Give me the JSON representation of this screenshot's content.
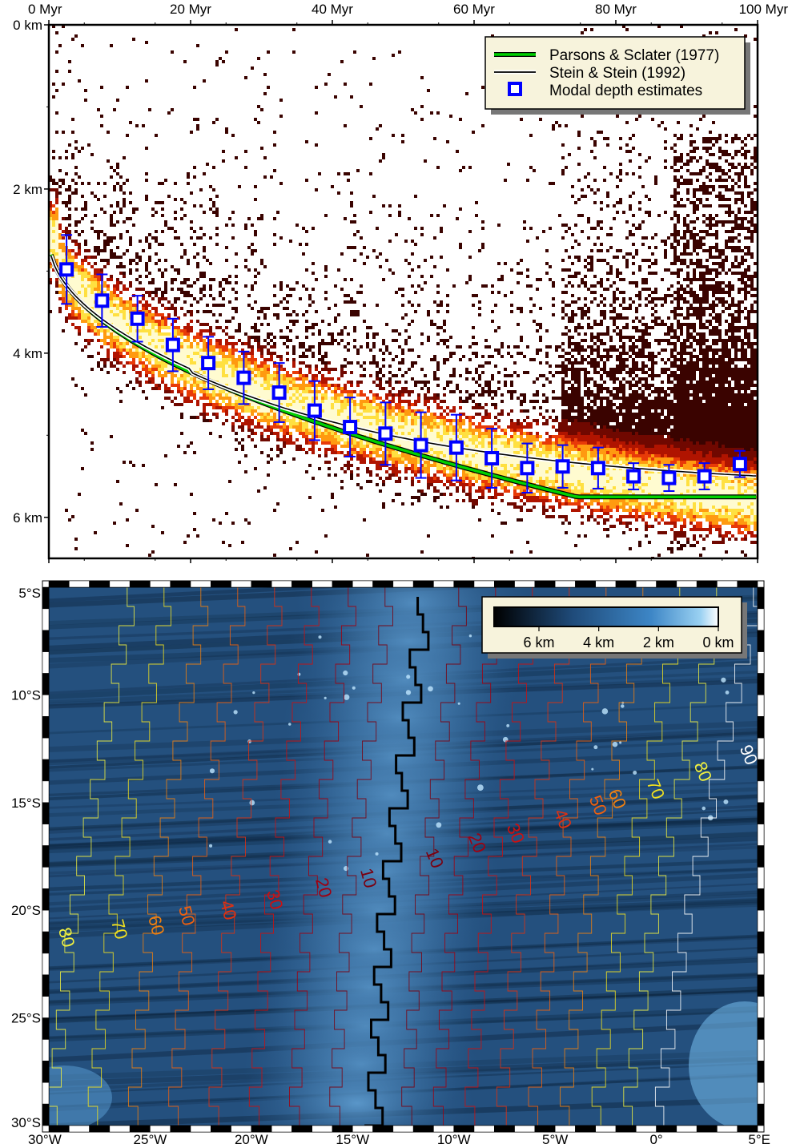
{
  "chart_data": [
    {
      "type": "scatter",
      "xlabel": "",
      "ylabel": "",
      "x_ticks": [
        "0 Myr",
        "20 Myr",
        "40 Myr",
        "60 Myr",
        "80 Myr",
        "100 Myr"
      ],
      "x_tick_values": [
        0,
        20,
        40,
        60,
        80,
        100
      ],
      "y_ticks": [
        "0 km",
        "2 km",
        "4 km",
        "6 km"
      ],
      "y_tick_values": [
        0,
        2,
        4,
        6
      ],
      "xlim": [
        0,
        100
      ],
      "ylim": [
        0,
        6.5
      ],
      "y_inverted": true,
      "grid": false,
      "legend_position": "top-right",
      "legend": [
        {
          "label": "Parsons & Sclater (1977)",
          "color": "#00d000"
        },
        {
          "label": "Stein & Stein (1992)",
          "color": "#000000"
        },
        {
          "label": "Modal depth estimates",
          "color": "#0000ff"
        }
      ],
      "colors": {
        "parsons": "#00d000",
        "stein": "#000000",
        "modal": "#0000ff"
      },
      "series": [
        {
          "name": "Modal depth estimates",
          "x": [
            2.5,
            7.5,
            12.5,
            17.5,
            22.5,
            27.5,
            32.5,
            37.5,
            42.5,
            47.5,
            52.5,
            57.5,
            62.5,
            67.5,
            72.5,
            77.5,
            82.5,
            87.5,
            92.5,
            97.5
          ],
          "y": [
            2.98,
            3.36,
            3.58,
            3.9,
            4.12,
            4.3,
            4.48,
            4.7,
            4.9,
            4.98,
            5.12,
            5.15,
            5.28,
            5.4,
            5.38,
            5.4,
            5.5,
            5.52,
            5.5,
            5.35
          ],
          "err": [
            0.42,
            0.32,
            0.28,
            0.32,
            0.32,
            0.32,
            0.36,
            0.36,
            0.36,
            0.38,
            0.4,
            0.4,
            0.36,
            0.3,
            0.26,
            0.25,
            0.16,
            0.16,
            0.16,
            0.16
          ]
        }
      ]
    },
    {
      "type": "heatmap",
      "xlabel": "",
      "ylabel": "",
      "x_ticks": [
        "30°W",
        "25°W",
        "20°W",
        "15°W",
        "10°W",
        "5°W",
        "0°",
        "5°E"
      ],
      "x_tick_values": [
        -30,
        -25,
        -20,
        -15,
        -10,
        -5,
        0,
        5
      ],
      "y_ticks": [
        "5°S",
        "10°S",
        "15°S",
        "20°S",
        "25°S",
        "30°S"
      ],
      "y_tick_values": [
        -5,
        -10,
        -15,
        -20,
        -25,
        -30
      ],
      "xlim": [
        -30,
        5
      ],
      "ylim": [
        -30,
        -5
      ],
      "colorbar": {
        "ticks": [
          "6 km",
          "4 km",
          "2 km",
          "0 km"
        ],
        "position": "top-right"
      },
      "contour_labels": {
        "west": [
          "10",
          "20",
          "30",
          "40",
          "50",
          "60",
          "70",
          "80"
        ],
        "east": [
          "10",
          "20",
          "30",
          "40",
          "50",
          "60",
          "70",
          "80",
          "90"
        ]
      },
      "contour_colors": {
        "10": "#7a0010",
        "20": "#a00010",
        "30": "#cc1010",
        "40": "#e03010",
        "50": "#ee6010",
        "60": "#f08010",
        "70": "#f0e020",
        "80": "#f0f040",
        "90": "#ffffff"
      }
    }
  ]
}
